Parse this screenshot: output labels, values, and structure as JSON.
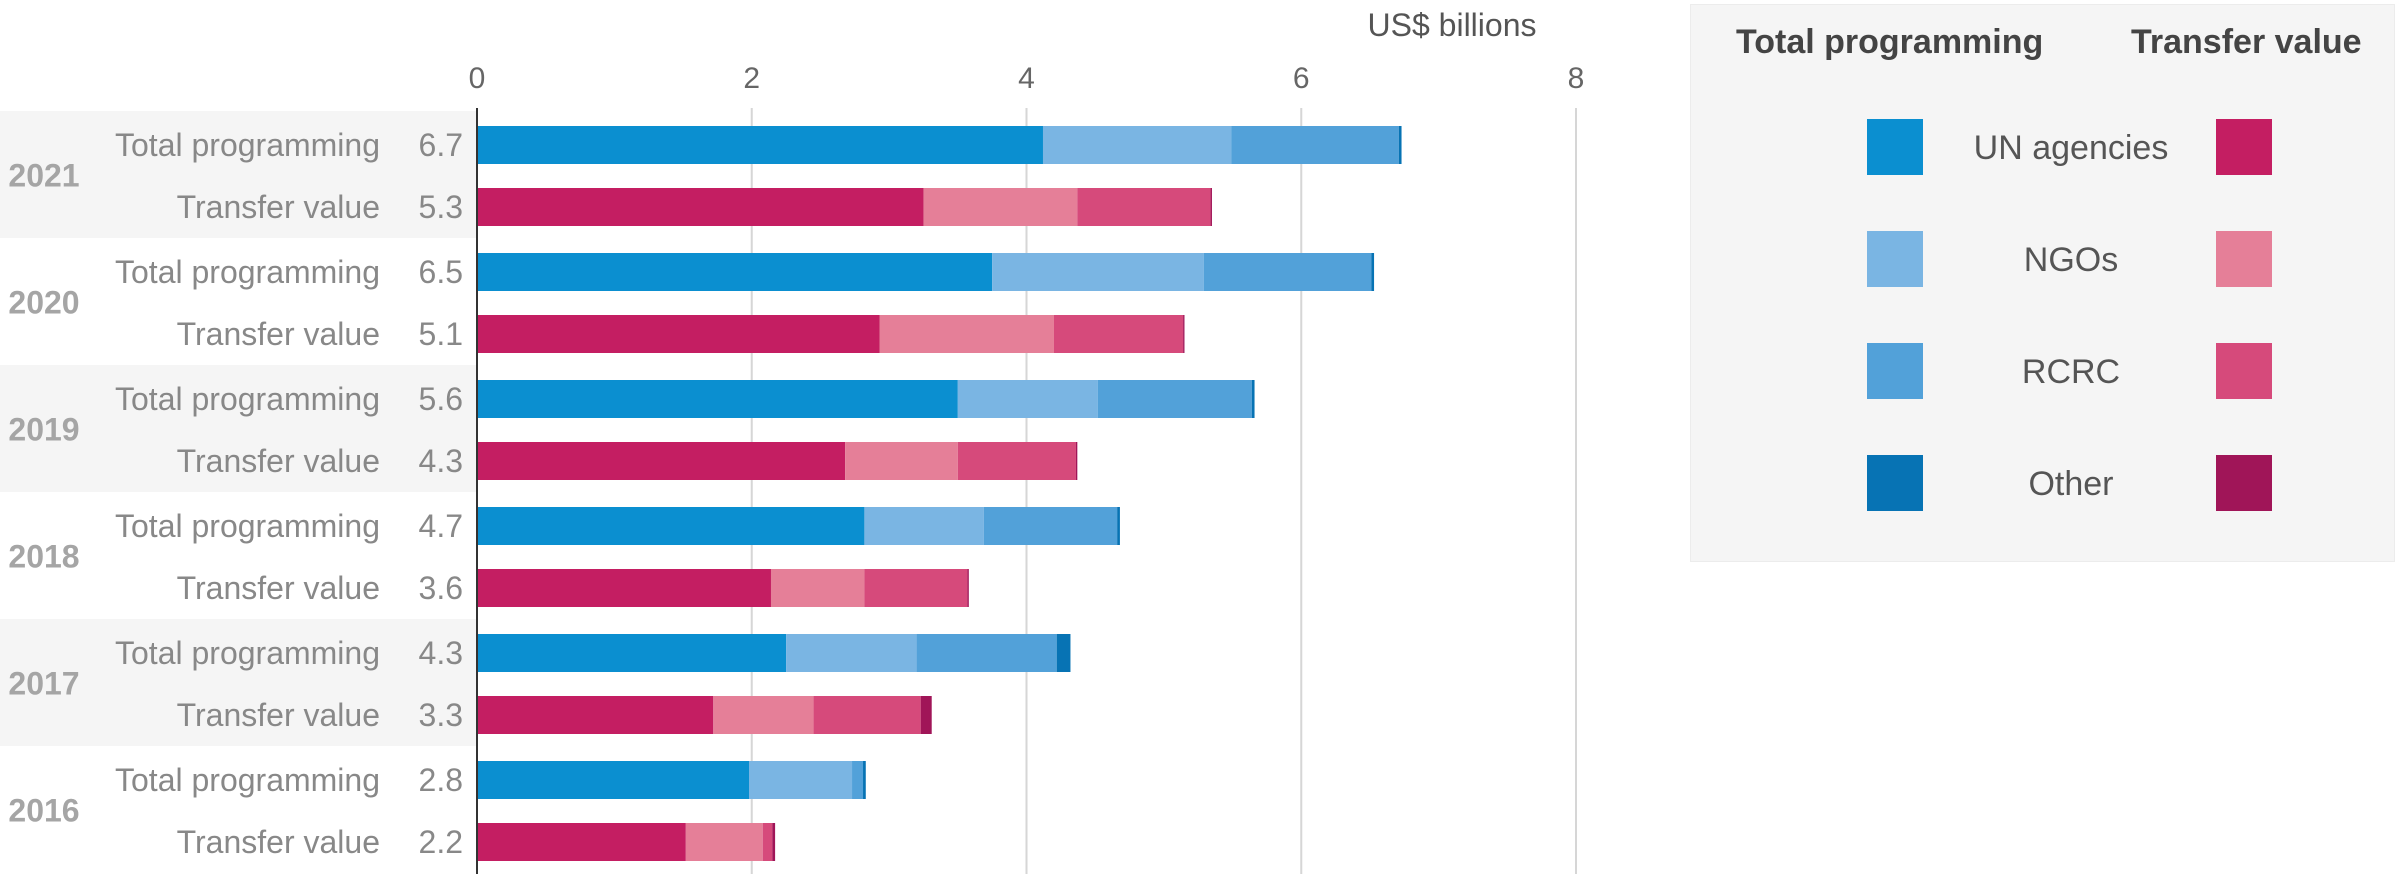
{
  "chart_data": {
    "type": "bar",
    "orientation": "horizontal",
    "stacked": true,
    "unit_label": "US$ billions",
    "xlim": [
      0,
      8
    ],
    "x_ticks": [
      0,
      2,
      4,
      6,
      8
    ],
    "grid": true,
    "legend_position": "right",
    "segment_names": [
      "UN agencies",
      "NGOs",
      "RCRC",
      "Other"
    ],
    "colors": {
      "Total programming": [
        "#0b8fd0",
        "#7ab5e3",
        "#52a1d9",
        "#0773b4"
      ],
      "Transfer value": [
        "#c41e62",
        "#e57f98",
        "#d64a7b",
        "#a01558"
      ]
    },
    "groups": [
      {
        "year": "2021",
        "rows": [
          {
            "label": "Total programming",
            "total_label": "6.7",
            "segments": [
              4.12,
              1.37,
              1.22,
              0.02
            ]
          },
          {
            "label": "Transfer value",
            "total_label": "5.3",
            "segments": [
              3.25,
              1.12,
              0.97,
              0.01
            ]
          }
        ]
      },
      {
        "year": "2020",
        "rows": [
          {
            "label": "Total programming",
            "total_label": "6.5",
            "segments": [
              3.75,
              1.54,
              1.22,
              0.02
            ]
          },
          {
            "label": "Transfer value",
            "total_label": "5.1",
            "segments": [
              2.93,
              1.27,
              0.94,
              0.01
            ]
          }
        ]
      },
      {
        "year": "2019",
        "rows": [
          {
            "label": "Total programming",
            "total_label": "5.6",
            "segments": [
              3.5,
              1.02,
              1.12,
              0.02
            ]
          },
          {
            "label": "Transfer value",
            "total_label": "4.3",
            "segments": [
              2.68,
              0.82,
              0.86,
              0.01
            ]
          }
        ]
      },
      {
        "year": "2018",
        "rows": [
          {
            "label": "Total programming",
            "total_label": "4.7",
            "segments": [
              2.82,
              0.87,
              0.97,
              0.02
            ]
          },
          {
            "label": "Transfer value",
            "total_label": "3.6",
            "segments": [
              2.14,
              0.68,
              0.75,
              0.01
            ]
          }
        ]
      },
      {
        "year": "2017",
        "rows": [
          {
            "label": "Total programming",
            "total_label": "4.3",
            "segments": [
              2.25,
              0.95,
              1.02,
              0.1
            ]
          },
          {
            "label": "Transfer value",
            "total_label": "3.3",
            "segments": [
              1.72,
              0.73,
              0.78,
              0.08
            ]
          }
        ]
      },
      {
        "year": "2016",
        "rows": [
          {
            "label": "Total programming",
            "total_label": "2.8",
            "segments": [
              1.98,
              0.75,
              0.08,
              0.02
            ]
          },
          {
            "label": "Transfer value",
            "total_label": "2.2",
            "segments": [
              1.52,
              0.56,
              0.07,
              0.02
            ]
          }
        ]
      }
    ]
  },
  "legend": {
    "header_programming": "Total programming",
    "header_transfer": "Transfer value",
    "items": [
      {
        "label": "UN agencies",
        "programming_color": "#0b8fd0",
        "transfer_color": "#c41e62"
      },
      {
        "label": "NGOs",
        "programming_color": "#7ab5e3",
        "transfer_color": "#e57f98"
      },
      {
        "label": "RCRC",
        "programming_color": "#52a1d9",
        "transfer_color": "#d64a7b"
      },
      {
        "label": "Other",
        "programming_color": "#0773b4",
        "transfer_color": "#a01558"
      }
    ]
  }
}
